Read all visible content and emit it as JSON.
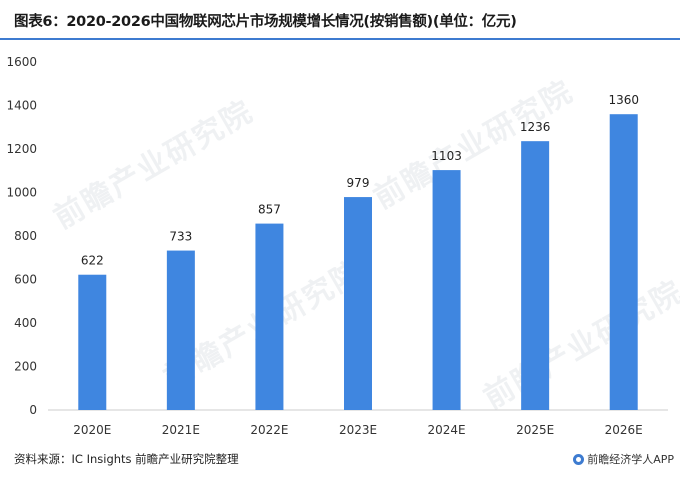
{
  "title": "图表6：2020-2026中国物联网芯片市场规模增长情况(按销售额)(单位：亿元)",
  "source": "资料来源：IC Insights 前瞻产业研究院整理",
  "brand": "前瞻经济学人APP",
  "watermark_text": "前瞻产业研究院",
  "colors": {
    "bar": "#3f86e0",
    "axis": "#cccccc",
    "title_rule": "#3d7bd0"
  },
  "chart_data": {
    "type": "bar",
    "categories": [
      "2020E",
      "2021E",
      "2022E",
      "2023E",
      "2024E",
      "2025E",
      "2026E"
    ],
    "values": [
      622,
      733,
      857,
      979,
      1103,
      1236,
      1360
    ],
    "data_labels": [
      "622",
      "733",
      "857",
      "979",
      "1103",
      "1236",
      "1360"
    ],
    "ylim": [
      0,
      1600
    ],
    "yticks": [
      0,
      200,
      400,
      600,
      800,
      1000,
      1200,
      1400,
      1600
    ],
    "grid": false,
    "xlabel": "",
    "ylabel": ""
  }
}
